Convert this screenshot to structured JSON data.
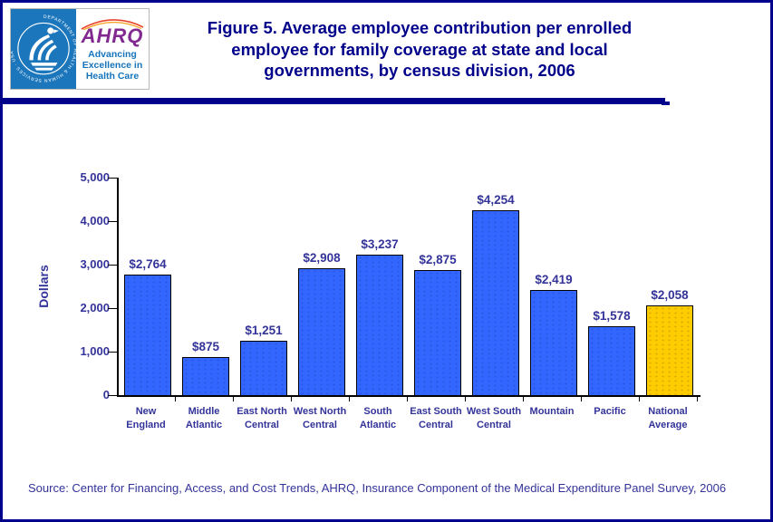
{
  "header": {
    "logo": {
      "seal_text": "DEPARTMENT OF HEALTH & HUMAN SERVICES · USA",
      "org": "AHRQ",
      "tagline_lines": [
        "Advancing",
        "Excellence in",
        "Health Care"
      ]
    },
    "title_lines": [
      "Figure 5. Average employee contribution per enrolled",
      "employee for family coverage at state and local",
      "governments, by census division, 2006"
    ]
  },
  "chart_data": {
    "type": "bar",
    "title": "Figure 5. Average employee contribution per enrolled employee for family coverage at state and local governments, by census division, 2006",
    "xlabel": "",
    "ylabel": "Dollars",
    "ylim": [
      0,
      5000
    ],
    "yticks": [
      0,
      1000,
      2000,
      3000,
      4000,
      5000
    ],
    "ytick_labels": [
      "0",
      "1,000",
      "2,000",
      "3,000",
      "4,000",
      "5,000"
    ],
    "grid": false,
    "legend": "none",
    "categories": [
      "New England",
      "Middle Atlantic",
      "East North Central",
      "West North Central",
      "South Atlantic",
      "East South Central",
      "West South Central",
      "Mountain",
      "Pacific",
      "National Average"
    ],
    "category_lines": [
      [
        "New",
        "England"
      ],
      [
        "Middle",
        "Atlantic"
      ],
      [
        "East North",
        "Central"
      ],
      [
        "West North",
        "Central"
      ],
      [
        "South",
        "Atlantic"
      ],
      [
        "East South",
        "Central"
      ],
      [
        "West South",
        "Central"
      ],
      [
        "Mountain"
      ],
      [
        "Pacific"
      ],
      [
        "National",
        "Average"
      ]
    ],
    "values": [
      2764,
      875,
      1251,
      2908,
      3237,
      2875,
      4254,
      2419,
      1578,
      2058
    ],
    "value_labels": [
      "$2,764",
      "$875",
      "$1,251",
      "$2,908",
      "$3,237",
      "$2,875",
      "$4,254",
      "$2,419",
      "$1,578",
      "$2,058"
    ],
    "bar_color": "#3366FF",
    "highlight_color": "#FFCC00",
    "highlight_index": 9,
    "bar_border_color": "#000000",
    "axis_color": "#000000",
    "text_color": "#33339A",
    "title_color": "#00008B"
  },
  "footer": {
    "source": "Source: Center for Financing, Access, and Cost Trends, AHRQ, Insurance Component of the Medical Expenditure Panel Survey, 2006"
  }
}
